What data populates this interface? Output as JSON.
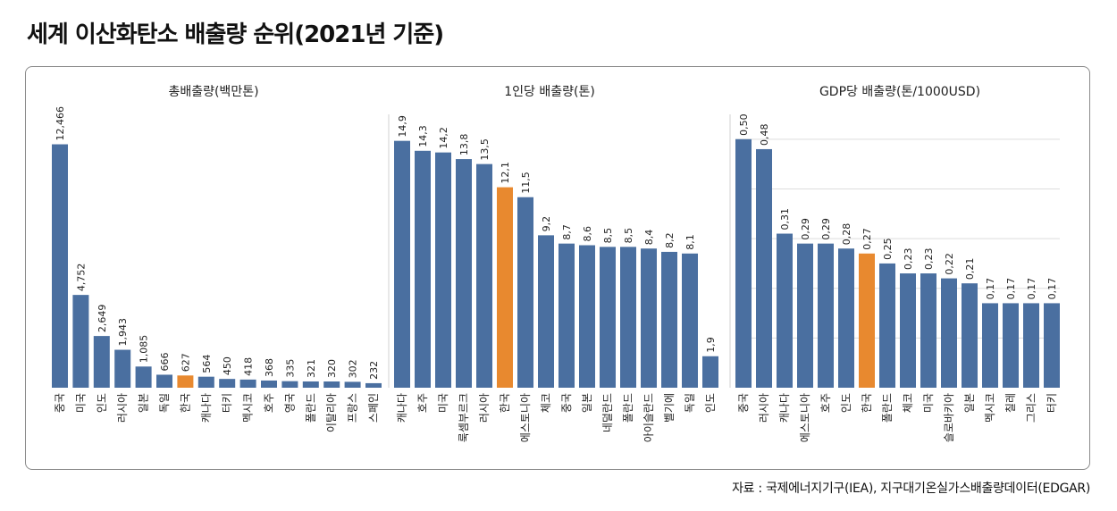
{
  "title": "세계 이산화탄소 배출량 순위(2021년 기준)",
  "source": "자료 : 국제에너지기구(IEA), 지구대기온실가스배출량데이터(EDGAR)",
  "colors": {
    "bar": "#4a6fa0",
    "highlight": "#e8892f",
    "grid": "#dddddd"
  },
  "chart_data": [
    {
      "type": "bar",
      "title": "총배출량(백만톤)",
      "highlight": "한국",
      "categories": [
        "중국",
        "미국",
        "인도",
        "러시아",
        "일본",
        "독일",
        "한국",
        "캐나다",
        "터키",
        "멕시코",
        "호주",
        "영국",
        "폴란드",
        "이탈리아",
        "프랑스",
        "스페인"
      ],
      "values": [
        12466,
        4752,
        2649,
        1943,
        1085,
        666,
        627,
        564,
        450,
        418,
        368,
        335,
        321,
        320,
        302,
        232
      ],
      "labels": [
        "12,466",
        "4,752",
        "2,649",
        "1,943",
        "1,085",
        "666",
        "627",
        "564",
        "450",
        "418",
        "368",
        "335",
        "321",
        "320",
        "302",
        "232"
      ],
      "ylim": [
        0,
        14000
      ]
    },
    {
      "type": "bar",
      "title": "1인당 배출량(톤)",
      "highlight": "한국",
      "categories": [
        "캐나다",
        "호주",
        "미국",
        "룩셈부르크",
        "러시아",
        "한국",
        "에스토니아",
        "체코",
        "중국",
        "일본",
        "네덜란드",
        "폴란드",
        "아이슬란드",
        "벨기에",
        "독일",
        "인도"
      ],
      "values": [
        14.9,
        14.3,
        14.2,
        13.8,
        13.5,
        12.1,
        11.5,
        9.2,
        8.7,
        8.6,
        8.5,
        8.5,
        8.4,
        8.2,
        8.1,
        1.9
      ],
      "labels": [
        "14,9",
        "14,3",
        "14,2",
        "13,8",
        "13,5",
        "12,1",
        "11,5",
        "9,2",
        "8,7",
        "8,6",
        "8,5",
        "8,5",
        "8,4",
        "8,2",
        "8,1",
        "1,9"
      ],
      "ylim": [
        0,
        16.5
      ]
    },
    {
      "type": "bar",
      "title": "GDP당 배출량(톤/1000USD)",
      "highlight": "한국",
      "categories": [
        "중국",
        "러시아",
        "캐나다",
        "에스토니아",
        "호주",
        "인도",
        "한국",
        "폴란드",
        "체코",
        "미국",
        "슬로바키아",
        "일본",
        "멕시코",
        "칠레",
        "그리스",
        "터키"
      ],
      "values": [
        0.5,
        0.48,
        0.31,
        0.29,
        0.29,
        0.28,
        0.27,
        0.25,
        0.23,
        0.23,
        0.22,
        0.21,
        0.17,
        0.17,
        0.17,
        0.17
      ],
      "labels": [
        "0,50",
        "0,48",
        "0,31",
        "0,29",
        "0,29",
        "0,28",
        "0,27",
        "0,25",
        "0,23",
        "0,23",
        "0,22",
        "0,21",
        "0,17",
        "0,17",
        "0,17",
        "0,17"
      ],
      "ylim": [
        0,
        0.55
      ],
      "grid": [
        0.1,
        0.2,
        0.3,
        0.4,
        0.5
      ]
    }
  ]
}
